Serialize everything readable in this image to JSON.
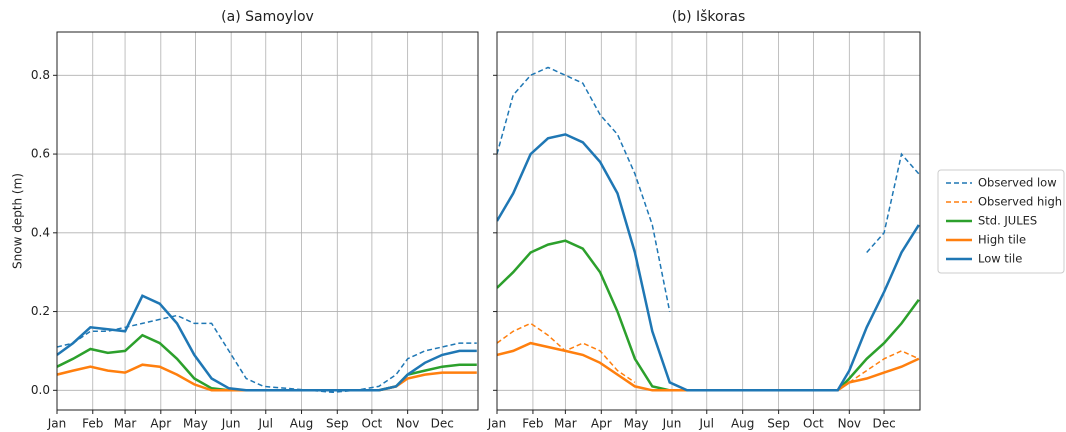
{
  "chart_data": [
    {
      "type": "line",
      "title": "(a) Samoylov",
      "y_label": "Snow depth (m)",
      "x": [
        1,
        15,
        30,
        45,
        60,
        75,
        90,
        105,
        120,
        135,
        150,
        165,
        180,
        200,
        220,
        240,
        260,
        280,
        295,
        305,
        320,
        335,
        350,
        365
      ],
      "xlim": [
        1,
        366
      ],
      "xticks": [
        {
          "value": 1,
          "label": "Jan"
        },
        {
          "value": 32,
          "label": "Feb"
        },
        {
          "value": 60,
          "label": "Mar"
        },
        {
          "value": 91,
          "label": "Apr"
        },
        {
          "value": 121,
          "label": "May"
        },
        {
          "value": 152,
          "label": "Jun"
        },
        {
          "value": 182,
          "label": "Jul"
        },
        {
          "value": 213,
          "label": "Aug"
        },
        {
          "value": 244,
          "label": "Sep"
        },
        {
          "value": 274,
          "label": "Oct"
        },
        {
          "value": 305,
          "label": "Nov"
        },
        {
          "value": 335,
          "label": "Dec"
        }
      ],
      "ylim": [
        -0.05,
        0.91
      ],
      "yticks": [
        {
          "value": 0,
          "label": "0.0"
        },
        0.2,
        0.4,
        0.6,
        0.8
      ],
      "grid": true,
      "series": [
        {
          "name": "Observed low",
          "color": "#1f77b4",
          "style": "dashed",
          "values": [
            0.11,
            0.12,
            0.15,
            0.15,
            0.16,
            0.17,
            0.18,
            0.19,
            0.17,
            0.17,
            0.1,
            0.03,
            0.01,
            0.005,
            0.0,
            -0.005,
            0.0,
            0.01,
            0.04,
            0.08,
            0.1,
            0.11,
            0.12,
            0.12
          ]
        },
        {
          "name": "Std. JULES",
          "color": "#2ca02c",
          "style": "solid",
          "values": [
            0.06,
            0.08,
            0.105,
            0.095,
            0.1,
            0.14,
            0.12,
            0.08,
            0.03,
            0.005,
            0,
            0,
            0,
            0,
            0,
            0,
            0,
            0,
            0.01,
            0.04,
            0.05,
            0.06,
            0.065,
            0.065
          ]
        },
        {
          "name": "High tile",
          "color": "#ff7f0e",
          "style": "solid",
          "values": [
            0.04,
            0.05,
            0.06,
            0.05,
            0.045,
            0.065,
            0.06,
            0.04,
            0.015,
            0,
            0,
            0,
            0,
            0,
            0,
            0,
            0,
            0,
            0.01,
            0.03,
            0.04,
            0.045,
            0.045,
            0.045
          ]
        },
        {
          "name": "Low tile",
          "color": "#1f77b4",
          "style": "solid",
          "values": [
            0.09,
            0.12,
            0.16,
            0.155,
            0.15,
            0.24,
            0.22,
            0.17,
            0.09,
            0.03,
            0.005,
            0,
            0,
            0,
            0,
            0,
            0,
            0,
            0.01,
            0.04,
            0.07,
            0.09,
            0.1,
            0.1
          ]
        }
      ]
    },
    {
      "type": "line",
      "title": "(b) Iškoras",
      "x": [
        1,
        15,
        30,
        45,
        60,
        75,
        90,
        105,
        120,
        135,
        150,
        165,
        180,
        200,
        220,
        240,
        260,
        280,
        295,
        305,
        320,
        335,
        350,
        365
      ],
      "xlim": [
        1,
        366
      ],
      "xticks": [
        {
          "value": 1,
          "label": "Jan"
        },
        {
          "value": 32,
          "label": "Feb"
        },
        {
          "value": 60,
          "label": "Mar"
        },
        {
          "value": 91,
          "label": "Apr"
        },
        {
          "value": 121,
          "label": "May"
        },
        {
          "value": 152,
          "label": "Jun"
        },
        {
          "value": 182,
          "label": "Jul"
        },
        {
          "value": 213,
          "label": "Aug"
        },
        {
          "value": 244,
          "label": "Sep"
        },
        {
          "value": 274,
          "label": "Oct"
        },
        {
          "value": 305,
          "label": "Nov"
        },
        {
          "value": 335,
          "label": "Dec"
        }
      ],
      "ylim": [
        -0.05,
        0.91
      ],
      "grid": true,
      "legend": "right-outside",
      "series": [
        {
          "name": "Observed low",
          "color": "#1f77b4",
          "style": "dashed",
          "values": [
            0.6,
            0.75,
            0.8,
            0.82,
            0.8,
            0.78,
            0.7,
            0.65,
            0.55,
            0.42,
            0.2,
            null,
            null,
            null,
            null,
            null,
            null,
            null,
            null,
            null,
            0.35,
            0.4,
            0.6,
            0.55
          ]
        },
        {
          "name": "Observed high",
          "color": "#ff7f0e",
          "style": "dashed",
          "values": [
            0.12,
            0.15,
            0.17,
            0.14,
            0.1,
            0.12,
            0.1,
            0.05,
            0.02,
            null,
            null,
            null,
            null,
            null,
            null,
            null,
            null,
            null,
            null,
            0.02,
            0.05,
            0.08,
            0.1,
            0.08
          ]
        },
        {
          "name": "Std. JULES",
          "color": "#2ca02c",
          "style": "solid",
          "values": [
            0.26,
            0.3,
            0.35,
            0.37,
            0.38,
            0.36,
            0.3,
            0.2,
            0.08,
            0.01,
            0,
            0,
            0,
            0,
            0,
            0,
            0,
            0,
            0,
            0.03,
            0.08,
            0.12,
            0.17,
            0.23
          ]
        },
        {
          "name": "High tile",
          "color": "#ff7f0e",
          "style": "solid",
          "values": [
            0.09,
            0.1,
            0.12,
            0.11,
            0.1,
            0.09,
            0.07,
            0.04,
            0.01,
            0,
            0,
            0,
            0,
            0,
            0,
            0,
            0,
            0,
            0,
            0.02,
            0.03,
            0.045,
            0.06,
            0.08
          ]
        },
        {
          "name": "Low tile",
          "color": "#1f77b4",
          "style": "solid",
          "values": [
            0.43,
            0.5,
            0.6,
            0.64,
            0.65,
            0.63,
            0.58,
            0.5,
            0.35,
            0.15,
            0.02,
            0,
            0,
            0,
            0,
            0,
            0,
            0,
            0,
            0.05,
            0.16,
            0.25,
            0.35,
            0.42
          ]
        }
      ]
    }
  ]
}
